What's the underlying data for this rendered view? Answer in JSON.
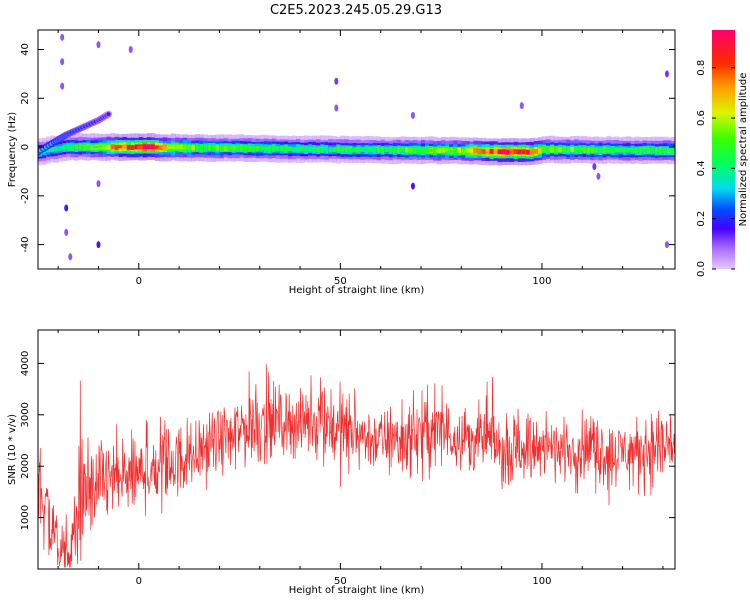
{
  "title": "C2E5.2023.245.05.29.G13",
  "chart_data": [
    {
      "type": "heatmap",
      "xlabel": "Height of straight line (km)",
      "ylabel": "Frequency (Hz)",
      "xlim": [
        -25,
        133
      ],
      "ylim": [
        -50,
        48
      ],
      "xticks": [
        0,
        50,
        100
      ],
      "yticks": [
        -40,
        -20,
        0,
        20,
        40
      ],
      "colorbar": {
        "label": "Normalized spectral amplitude",
        "range": [
          0.0,
          0.95
        ],
        "ticks": [
          0.0,
          0.2,
          0.4,
          0.6,
          0.8
        ],
        "tick_labels": [
          "0.0",
          "0.2",
          "0.4",
          "0.6",
          "0.8"
        ],
        "colormap": "gist_rainbow_r"
      },
      "main_band": {
        "center_hz": [
          {
            "x": -25,
            "f": -2
          },
          {
            "x": -22,
            "f": -1
          },
          {
            "x": -18,
            "f": 0
          },
          {
            "x": 0,
            "f": 0
          },
          {
            "x": 50,
            "f": -1
          },
          {
            "x": 80,
            "f": -1.5
          },
          {
            "x": 90,
            "f": -2
          },
          {
            "x": 97,
            "f": -2
          },
          {
            "x": 100,
            "f": -1
          },
          {
            "x": 133,
            "f": -1.5
          }
        ],
        "peak_amplitude": [
          {
            "x": -25,
            "a": 0.35
          },
          {
            "x": -20,
            "a": 0.4
          },
          {
            "x": -10,
            "a": 0.55
          },
          {
            "x": -5,
            "a": 0.75
          },
          {
            "x": 2,
            "a": 0.92
          },
          {
            "x": 8,
            "a": 0.6
          },
          {
            "x": 20,
            "a": 0.5
          },
          {
            "x": 40,
            "a": 0.42
          },
          {
            "x": 60,
            "a": 0.45
          },
          {
            "x": 80,
            "a": 0.6
          },
          {
            "x": 88,
            "a": 0.85
          },
          {
            "x": 92,
            "a": 0.9
          },
          {
            "x": 97,
            "a": 0.8
          },
          {
            "x": 100,
            "a": 0.55
          },
          {
            "x": 120,
            "a": 0.45
          },
          {
            "x": 133,
            "a": 0.5
          }
        ]
      },
      "drifting_signal": [
        {
          "x": -25,
          "f": -2,
          "a": 0.4
        },
        {
          "x": -21,
          "f": 2,
          "a": 0.3
        },
        {
          "x": -18,
          "f": 5,
          "a": 0.25
        },
        {
          "x": -14,
          "f": 8,
          "a": 0.2
        },
        {
          "x": -10,
          "f": 11,
          "a": 0.18
        },
        {
          "x": -7,
          "f": 14,
          "a": 0.15
        }
      ],
      "sparse_features": [
        {
          "x": -19,
          "f": 45,
          "a": 0.1
        },
        {
          "x": -19,
          "f": 35,
          "a": 0.1
        },
        {
          "x": -19,
          "f": 25,
          "a": 0.1
        },
        {
          "x": -18,
          "f": -25,
          "a": 0.2
        },
        {
          "x": -18,
          "f": -35,
          "a": 0.1
        },
        {
          "x": -17,
          "f": -45,
          "a": 0.1
        },
        {
          "x": -10,
          "f": 42,
          "a": 0.1
        },
        {
          "x": -10,
          "f": -40,
          "a": 0.15
        },
        {
          "x": -10,
          "f": -15,
          "a": 0.1
        },
        {
          "x": -2,
          "f": 40,
          "a": 0.1
        },
        {
          "x": 49,
          "f": 27,
          "a": 0.12
        },
        {
          "x": 49,
          "f": 16,
          "a": 0.1
        },
        {
          "x": 68,
          "f": 13,
          "a": 0.1
        },
        {
          "x": 68,
          "f": -16,
          "a": 0.15
        },
        {
          "x": 95,
          "f": 17,
          "a": 0.1
        },
        {
          "x": 113,
          "f": -8,
          "a": 0.12
        },
        {
          "x": 114,
          "f": -12,
          "a": 0.1
        },
        {
          "x": 131,
          "f": 30,
          "a": 0.12
        },
        {
          "x": 131,
          "f": -40,
          "a": 0.1
        }
      ]
    },
    {
      "type": "line",
      "xlabel": "Height of straight line (km)",
      "ylabel": "SNR (10 * v/v)",
      "xlim": [
        -25,
        133
      ],
      "ylim": [
        0,
        4650
      ],
      "xticks": [
        0,
        50,
        100
      ],
      "yticks": [
        1000,
        2000,
        3000,
        4000
      ],
      "color": "#f03030",
      "series": [
        {
          "name": "",
          "envelope": [
            {
              "x": -25,
              "mean": 1750,
              "lo": 400,
              "hi": 2900
            },
            {
              "x": -22,
              "mean": 900,
              "lo": 150,
              "hi": 2700
            },
            {
              "x": -19,
              "mean": 300,
              "lo": 30,
              "hi": 1500
            },
            {
              "x": -17,
              "mean": 200,
              "lo": 30,
              "hi": 800
            },
            {
              "x": -15,
              "mean": 1200,
              "lo": 100,
              "hi": 4100
            },
            {
              "x": -13,
              "mean": 1300,
              "lo": 300,
              "hi": 2700
            },
            {
              "x": -10,
              "mean": 1700,
              "lo": 700,
              "hi": 2800
            },
            {
              "x": -5,
              "mean": 1750,
              "lo": 700,
              "hi": 3000
            },
            {
              "x": 0,
              "mean": 1800,
              "lo": 1000,
              "hi": 3000
            },
            {
              "x": 5,
              "mean": 2000,
              "lo": 1000,
              "hi": 3000
            },
            {
              "x": 10,
              "mean": 2100,
              "lo": 1200,
              "hi": 3100
            },
            {
              "x": 15,
              "mean": 2300,
              "lo": 1300,
              "hi": 3200
            },
            {
              "x": 20,
              "mean": 2500,
              "lo": 1800,
              "hi": 3400
            },
            {
              "x": 25,
              "mean": 2700,
              "lo": 1900,
              "hi": 3700
            },
            {
              "x": 29,
              "mean": 2900,
              "lo": 2000,
              "hi": 4650
            },
            {
              "x": 35,
              "mean": 2900,
              "lo": 2100,
              "hi": 3700
            },
            {
              "x": 40,
              "mean": 2800,
              "lo": 2000,
              "hi": 3800
            },
            {
              "x": 45,
              "mean": 2950,
              "lo": 2100,
              "hi": 3900
            },
            {
              "x": 50,
              "mean": 2700,
              "lo": 1300,
              "hi": 3700
            },
            {
              "x": 55,
              "mean": 2600,
              "lo": 1800,
              "hi": 3500
            },
            {
              "x": 60,
              "mean": 2500,
              "lo": 1800,
              "hi": 3400
            },
            {
              "x": 65,
              "mean": 2500,
              "lo": 1700,
              "hi": 3300
            },
            {
              "x": 70,
              "mean": 2650,
              "lo": 1700,
              "hi": 4000
            },
            {
              "x": 75,
              "mean": 2650,
              "lo": 1800,
              "hi": 3600
            },
            {
              "x": 80,
              "mean": 2600,
              "lo": 1900,
              "hi": 3500
            },
            {
              "x": 85,
              "mean": 2500,
              "lo": 1800,
              "hi": 3600
            },
            {
              "x": 88,
              "mean": 2500,
              "lo": 1700,
              "hi": 4200
            },
            {
              "x": 90,
              "mean": 2200,
              "lo": 1500,
              "hi": 3000
            },
            {
              "x": 95,
              "mean": 2400,
              "lo": 1600,
              "hi": 3300
            },
            {
              "x": 100,
              "mean": 2400,
              "lo": 1700,
              "hi": 3400
            },
            {
              "x": 105,
              "mean": 2300,
              "lo": 1600,
              "hi": 3100
            },
            {
              "x": 110,
              "mean": 2400,
              "lo": 1400,
              "hi": 3100
            },
            {
              "x": 115,
              "mean": 2300,
              "lo": 1400,
              "hi": 3200
            },
            {
              "x": 117,
              "mean": 2200,
              "lo": 1200,
              "hi": 3000
            },
            {
              "x": 120,
              "mean": 2300,
              "lo": 1500,
              "hi": 3000
            },
            {
              "x": 125,
              "mean": 2300,
              "lo": 1400,
              "hi": 3100
            },
            {
              "x": 130,
              "mean": 2400,
              "lo": 1400,
              "hi": 3900
            },
            {
              "x": 133,
              "mean": 2500,
              "lo": 1600,
              "hi": 3100
            }
          ]
        }
      ]
    }
  ]
}
